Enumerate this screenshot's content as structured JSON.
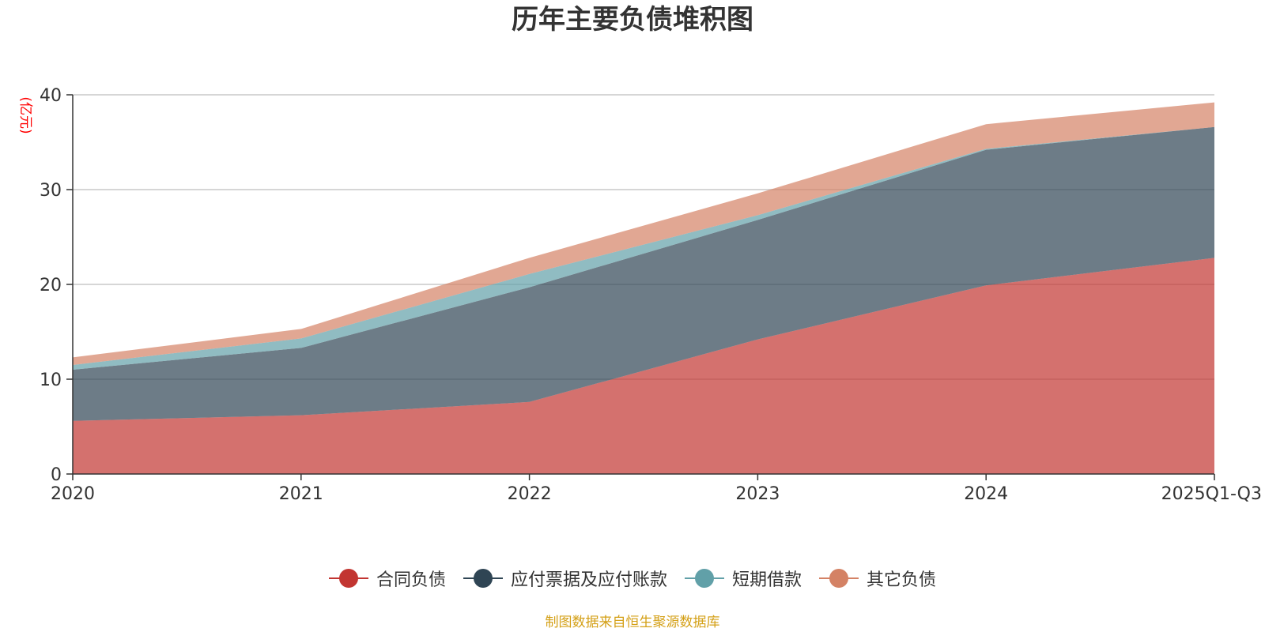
{
  "chart_data": {
    "type": "area",
    "stacked": true,
    "title": "历年主要负债堆积图",
    "ylabel": "(亿元)",
    "xlabel": "",
    "ylim": [
      0,
      40
    ],
    "yticks": [
      0,
      10,
      20,
      30,
      40
    ],
    "categories": [
      "2020",
      "2021",
      "2022",
      "2023",
      "2024",
      "2025Q1-Q3"
    ],
    "grid": true,
    "legend_position": "bottom",
    "series": [
      {
        "name": "合同负债",
        "color": "#c23531",
        "values": [
          5.6,
          6.2,
          7.6,
          14.2,
          19.9,
          22.8
        ]
      },
      {
        "name": "应付票据及应付账款",
        "color": "#2f4554",
        "values": [
          5.4,
          7.1,
          12.1,
          12.6,
          14.3,
          13.8
        ]
      },
      {
        "name": "短期借款",
        "color": "#61a0a8",
        "values": [
          0.5,
          1.0,
          1.4,
          0.5,
          0.1,
          0.0
        ]
      },
      {
        "name": "其它负债",
        "color": "#d48265",
        "values": [
          0.8,
          1.0,
          1.7,
          2.3,
          2.6,
          2.6
        ]
      }
    ]
  },
  "source_note": "制图数据来自恒生聚源数据库"
}
